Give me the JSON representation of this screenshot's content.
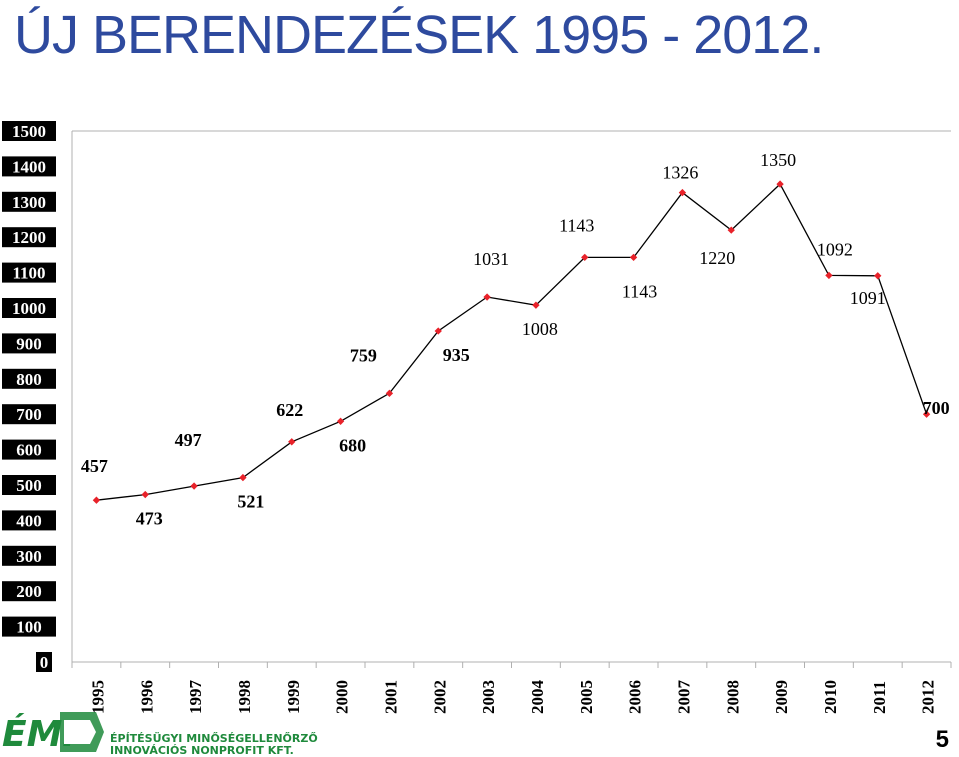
{
  "title": "ÚJ BERENDEZÉSEK 1995 - 2012.",
  "logo": {
    "line1": "ÉPÍTÉSÜGYI MINŐSÉGELLENŐRZŐ",
    "line2": "INNOVÁCIÓS NONPROFIT KFT.",
    "brand_color": "#1f8a3c"
  },
  "page_number": "5",
  "chart_data": {
    "type": "line",
    "title": "ÚJ BERENDEZÉSEK 1995 - 2012.",
    "categories": [
      "1995",
      "1996",
      "1997",
      "1998",
      "1999",
      "2000",
      "2001",
      "2002",
      "2003",
      "2004",
      "2005",
      "2006",
      "2007",
      "2008",
      "2009",
      "2010",
      "2011",
      "2012"
    ],
    "values": [
      457,
      473,
      497,
      521,
      622,
      680,
      759,
      935,
      1031,
      1008,
      1143,
      1143,
      1326,
      1220,
      1350,
      1092,
      1091,
      700
    ],
    "ylim": [
      0,
      1500
    ],
    "yticks": [
      0,
      100,
      200,
      300,
      400,
      500,
      600,
      700,
      800,
      900,
      1000,
      1100,
      1200,
      1300,
      1400,
      1500
    ],
    "grid": false,
    "legend": "none",
    "line_color": "#000000",
    "marker_color": "#e8222a",
    "tick_label_bg": "#000000",
    "tick_label_color": "#ffffff"
  }
}
